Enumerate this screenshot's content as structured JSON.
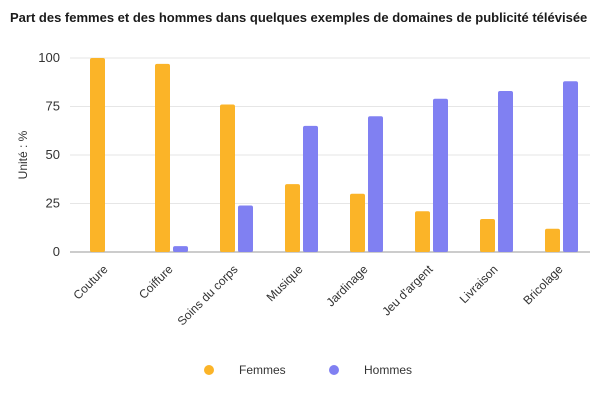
{
  "chart_data": {
    "type": "bar",
    "title": "Part des femmes et des hommes dans quelques exemples de domaines de publicité télévisée",
    "xlabel": "",
    "ylabel": "Unité : %",
    "ylim": [
      0,
      100
    ],
    "yticks": [
      0,
      25,
      50,
      75,
      100
    ],
    "grid": true,
    "legend": "bottom",
    "categories": [
      "Couture",
      "Coiffure",
      "Soins du corps",
      "Musique",
      "Jardinage",
      "Jeu d'argent",
      "Livraison",
      "Bricolage"
    ],
    "series": [
      {
        "name": "Femmes",
        "color": "#FBB428",
        "values": [
          100,
          97,
          76,
          35,
          30,
          21,
          17,
          12
        ]
      },
      {
        "name": "Hommes",
        "color": "#8080F2",
        "values": [
          0,
          3,
          24,
          65,
          70,
          79,
          83,
          88
        ]
      }
    ]
  }
}
